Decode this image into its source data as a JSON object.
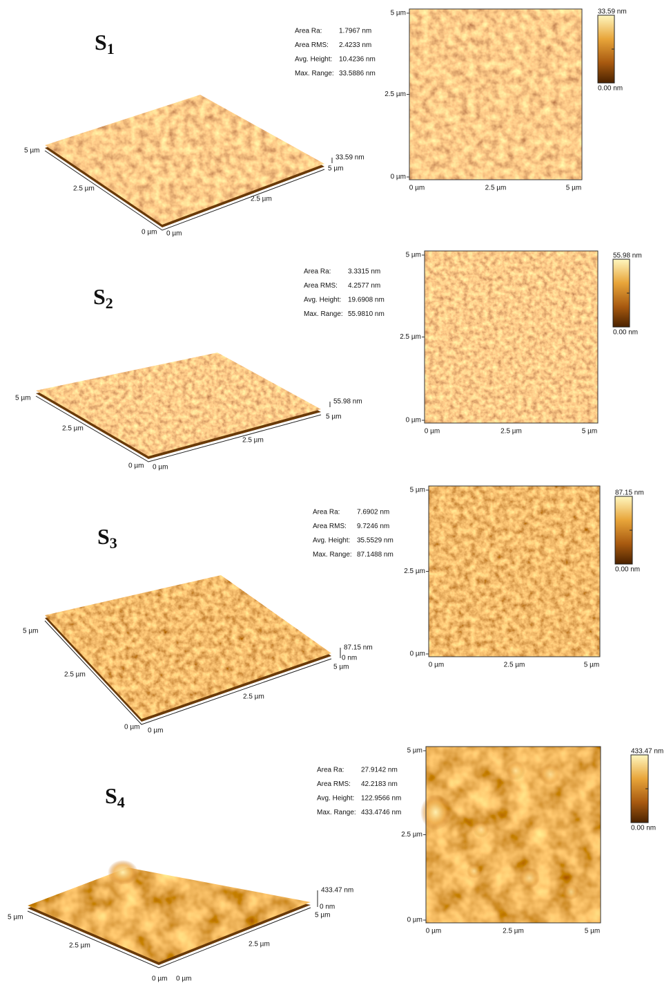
{
  "panels": [
    {
      "label": "S",
      "subscript": "1",
      "stats": [
        {
          "name": "Area Ra:",
          "value": "1.7967 nm"
        },
        {
          "name": "Area RMS:",
          "value": "2.4233 nm"
        },
        {
          "name": "Avg. Height:",
          "value": "10.4236 nm"
        },
        {
          "name": "Max. Range:",
          "value": "33.5886 nm"
        }
      ],
      "image_2d": {
        "y_ticks": [
          "5 µm",
          "2.5 µm",
          "0 µm"
        ],
        "x_ticks": [
          "0 µm",
          "2.5 µm",
          "5 µm"
        ]
      },
      "color_scale": {
        "max": "33.59 nm",
        "min": "0.00 nm"
      },
      "surface_3d": {
        "depth_ticks": [
          "5 µm",
          "2.5 µm",
          "0 µm"
        ],
        "width_ticks": [
          "0 µm",
          "2.5 µm",
          "5 µm"
        ],
        "z_max": "33.59 nm"
      }
    },
    {
      "label": "S",
      "subscript": "2",
      "stats": [
        {
          "name": "Area Ra:",
          "value": "3.3315 nm"
        },
        {
          "name": "Area RMS:",
          "value": "4.2577 nm"
        },
        {
          "name": "Avg. Height:",
          "value": "19.6908 nm"
        },
        {
          "name": "Max. Range:",
          "value": "55.9810 nm"
        }
      ],
      "image_2d": {
        "y_ticks": [
          "5 µm",
          "2.5 µm",
          "0 µm"
        ],
        "x_ticks": [
          "0 µm",
          "2.5 µm",
          "5 µm"
        ]
      },
      "color_scale": {
        "max": "55.98 nm",
        "min": "0.00 nm"
      },
      "surface_3d": {
        "depth_ticks": [
          "5 µm",
          "2.5 µm",
          "0 µm"
        ],
        "width_ticks": [
          "0 µm",
          "2.5 µm",
          "5 µm"
        ],
        "z_max": "55.98 nm"
      }
    },
    {
      "label": "S",
      "subscript": "3",
      "stats": [
        {
          "name": "Area Ra:",
          "value": "7.6902 nm"
        },
        {
          "name": "Area RMS:",
          "value": "9.7246 nm"
        },
        {
          "name": "Avg. Height:",
          "value": "35.5529 nm"
        },
        {
          "name": "Max. Range:",
          "value": "87.1488 nm"
        }
      ],
      "image_2d": {
        "y_ticks": [
          "5 µm",
          "2.5 µm",
          "0 µm"
        ],
        "x_ticks": [
          "0 µm",
          "2.5 µm",
          "5 µm"
        ]
      },
      "color_scale": {
        "max": "87.15 nm",
        "min": "0.00 nm"
      },
      "surface_3d": {
        "depth_ticks": [
          "5 µm",
          "2.5 µm",
          "0 µm"
        ],
        "width_ticks": [
          "0 µm",
          "2.5 µm",
          "5 µm"
        ],
        "z_max": "87.15 nm",
        "z_min": "0 nm"
      }
    },
    {
      "label": "S",
      "subscript": "4",
      "stats": [
        {
          "name": "Area Ra:",
          "value": "27.9142 nm"
        },
        {
          "name": "Area RMS:",
          "value": "42.2183 nm"
        },
        {
          "name": "Avg. Height:",
          "value": "122.9566 nm"
        },
        {
          "name": "Max. Range:",
          "value": "433.4746 nm"
        }
      ],
      "image_2d": {
        "y_ticks": [
          "5 µm",
          "2.5 µm",
          "0 µm"
        ],
        "x_ticks": [
          "0 µm",
          "2.5 µm",
          "5 µm"
        ]
      },
      "color_scale": {
        "max": "433.47 nm",
        "min": "0.00 nm"
      },
      "surface_3d": {
        "depth_ticks": [
          "5 µm",
          "2.5 µm",
          "0 µm"
        ],
        "width_ticks": [
          "0 µm",
          "2.5 µm",
          "5 µm"
        ],
        "z_max": "433.47 nm",
        "z_min": "0 nm"
      }
    }
  ]
}
